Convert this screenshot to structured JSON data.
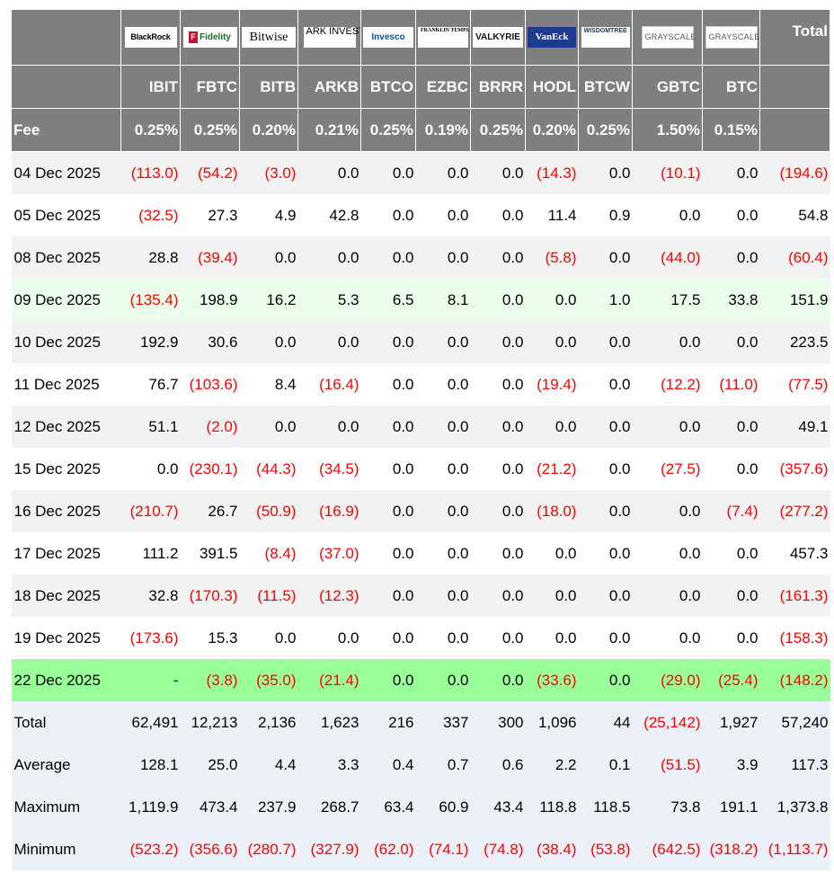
{
  "header": {
    "logos": [
      {
        "name": "blackrock-logo",
        "text": "BlackRock"
      },
      {
        "name": "fidelity-logo",
        "text": "Fidelity"
      },
      {
        "name": "bitwise-logo",
        "text": "Bitwise"
      },
      {
        "name": "ark-logo",
        "text": "ARK INVEST"
      },
      {
        "name": "invesco-logo",
        "text": "Invesco"
      },
      {
        "name": "franklin-logo",
        "text": "FRANKLIN TEMPLETON"
      },
      {
        "name": "valkyrie-logo",
        "text": "VALKYRIE"
      },
      {
        "name": "vaneck-logo",
        "text": "VanEck"
      },
      {
        "name": "wisdomtree-logo",
        "text": "WISDOMTREE"
      },
      {
        "name": "grayscale-gbtc-logo",
        "text": "GRAYSCALE"
      },
      {
        "name": "grayscale-btc-logo",
        "text": "GRAYSCALE"
      }
    ],
    "total_label": "Total",
    "tickers": [
      "IBIT",
      "FBTC",
      "BITB",
      "ARKB",
      "BTCO",
      "EZBC",
      "BRRR",
      "HODL",
      "BTCW",
      "GBTC",
      "BTC"
    ],
    "fee_label": "Fee",
    "fees": [
      "0.25%",
      "0.25%",
      "0.20%",
      "0.21%",
      "0.25%",
      "0.19%",
      "0.25%",
      "0.20%",
      "0.25%",
      "1.50%",
      "0.15%"
    ]
  },
  "rows": [
    {
      "date": "04 Dec 2025",
      "cells": [
        "(113.0)",
        "(54.2)",
        "(3.0)",
        "0.0",
        "0.0",
        "0.0",
        "0.0",
        "(14.3)",
        "0.0",
        "(10.1)",
        "0.0",
        "(194.6)"
      ]
    },
    {
      "date": "05 Dec 2025",
      "cells": [
        "(32.5)",
        "27.3",
        "4.9",
        "42.8",
        "0.0",
        "0.0",
        "0.0",
        "11.4",
        "0.9",
        "0.0",
        "0.0",
        "54.8"
      ]
    },
    {
      "date": "08 Dec 2025",
      "cells": [
        "28.8",
        "(39.4)",
        "0.0",
        "0.0",
        "0.0",
        "0.0",
        "0.0",
        "(5.8)",
        "0.0",
        "(44.0)",
        "0.0",
        "(60.4)"
      ]
    },
    {
      "date": "09 Dec 2025",
      "cells": [
        "(135.4)",
        "198.9",
        "16.2",
        "5.3",
        "6.5",
        "8.1",
        "0.0",
        "0.0",
        "1.0",
        "17.5",
        "33.8",
        "151.9"
      ]
    },
    {
      "date": "10 Dec 2025",
      "cells": [
        "192.9",
        "30.6",
        "0.0",
        "0.0",
        "0.0",
        "0.0",
        "0.0",
        "0.0",
        "0.0",
        "0.0",
        "0.0",
        "223.5"
      ]
    },
    {
      "date": "11 Dec 2025",
      "cells": [
        "76.7",
        "(103.6)",
        "8.4",
        "(16.4)",
        "0.0",
        "0.0",
        "0.0",
        "(19.4)",
        "0.0",
        "(12.2)",
        "(11.0)",
        "(77.5)"
      ]
    },
    {
      "date": "12 Dec 2025",
      "cells": [
        "51.1",
        "(2.0)",
        "0.0",
        "0.0",
        "0.0",
        "0.0",
        "0.0",
        "0.0",
        "0.0",
        "0.0",
        "0.0",
        "49.1"
      ]
    },
    {
      "date": "15 Dec 2025",
      "cells": [
        "0.0",
        "(230.1)",
        "(44.3)",
        "(34.5)",
        "0.0",
        "0.0",
        "0.0",
        "(21.2)",
        "0.0",
        "(27.5)",
        "0.0",
        "(357.6)"
      ]
    },
    {
      "date": "16 Dec 2025",
      "cells": [
        "(210.7)",
        "26.7",
        "(50.9)",
        "(16.9)",
        "0.0",
        "0.0",
        "0.0",
        "(18.0)",
        "0.0",
        "0.0",
        "(7.4)",
        "(277.2)"
      ]
    },
    {
      "date": "17 Dec 2025",
      "cells": [
        "111.2",
        "391.5",
        "(8.4)",
        "(37.0)",
        "0.0",
        "0.0",
        "0.0",
        "0.0",
        "0.0",
        "0.0",
        "0.0",
        "457.3"
      ]
    },
    {
      "date": "18 Dec 2025",
      "cells": [
        "32.8",
        "(170.3)",
        "(11.5)",
        "(12.3)",
        "0.0",
        "0.0",
        "0.0",
        "0.0",
        "0.0",
        "0.0",
        "0.0",
        "(161.3)"
      ]
    },
    {
      "date": "19 Dec 2025",
      "cells": [
        "(173.6)",
        "15.3",
        "0.0",
        "0.0",
        "0.0",
        "0.0",
        "0.0",
        "0.0",
        "0.0",
        "0.0",
        "0.0",
        "(158.3)"
      ]
    },
    {
      "date": "22 Dec 2025",
      "cells": [
        "-",
        "(3.8)",
        "(35.0)",
        "(21.4)",
        "0.0",
        "0.0",
        "0.0",
        "(33.6)",
        "0.0",
        "(29.0)",
        "(25.4)",
        "(148.2)"
      ]
    }
  ],
  "stats": [
    {
      "label": "Total",
      "cells": [
        "62,491",
        "12,213",
        "2,136",
        "1,623",
        "216",
        "337",
        "300",
        "1,096",
        "44",
        "(25,142)",
        "1,927",
        "57,240"
      ]
    },
    {
      "label": "Average",
      "cells": [
        "128.1",
        "25.0",
        "4.4",
        "3.3",
        "0.4",
        "0.7",
        "0.6",
        "2.2",
        "0.1",
        "(51.5)",
        "3.9",
        "117.3"
      ]
    },
    {
      "label": "Maximum",
      "cells": [
        "1,119.9",
        "473.4",
        "237.9",
        "268.7",
        "63.4",
        "60.9",
        "43.4",
        "118.8",
        "118.5",
        "73.8",
        "191.1",
        "1,373.8"
      ]
    },
    {
      "label": "Minimum",
      "cells": [
        "(523.2)",
        "(356.6)",
        "(280.7)",
        "(327.9)",
        "(62.0)",
        "(74.1)",
        "(74.8)",
        "(38.4)",
        "(53.8)",
        "(642.5)",
        "(318.2)",
        "(1,113.7)"
      ]
    }
  ],
  "colors": {
    "header_bg": "#7f7f7f",
    "negative": "#ff0000",
    "row_light_green": "#ebfeeb",
    "row_strong_green": "#99ff99",
    "stats_bg": "#ecf0f8"
  }
}
